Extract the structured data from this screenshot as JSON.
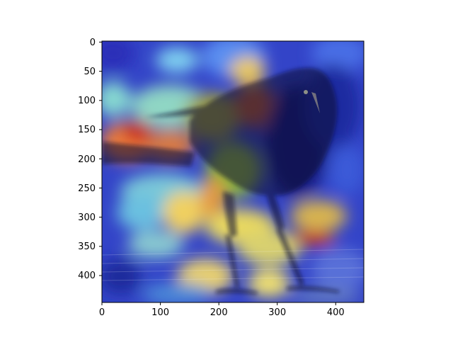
{
  "figure": {
    "image_subject": "black bird (grackle) standing on a wooden surface",
    "overlay": "jet colormap heatmap (saliency / attention map)",
    "colormap_colors": [
      "#00007f",
      "#0000ff",
      "#00ffff",
      "#ffff00",
      "#ff0000",
      "#7f0000"
    ],
    "background_color": "#ffffff",
    "axes_color": "#000000"
  },
  "axes": {
    "x": {
      "range": [
        0,
        448
      ],
      "ticks": [
        0,
        100,
        200,
        300,
        400
      ],
      "tick_labels": [
        "0",
        "100",
        "200",
        "300",
        "400"
      ]
    },
    "y": {
      "range": [
        0,
        448
      ],
      "inverted": true,
      "ticks": [
        0,
        50,
        100,
        150,
        200,
        250,
        300,
        350,
        400
      ],
      "tick_labels": [
        "0",
        "50",
        "100",
        "150",
        "200",
        "250",
        "300",
        "350",
        "400"
      ]
    }
  }
}
